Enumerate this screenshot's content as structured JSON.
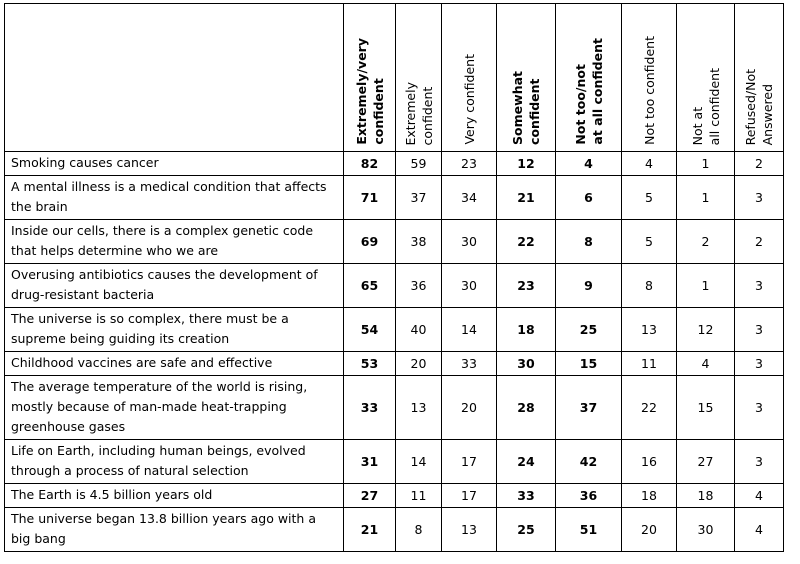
{
  "chart_data": {
    "type": "table",
    "columns": [
      {
        "label": "Extremely/very\nconfident",
        "bold": true
      },
      {
        "label": "Extremely\nconfident",
        "bold": false
      },
      {
        "label": "Very confident",
        "bold": false
      },
      {
        "label": "Somewhat\nconfident",
        "bold": true
      },
      {
        "label": "Not too/not\nat all confident",
        "bold": true
      },
      {
        "label": "Not too confident",
        "bold": false
      },
      {
        "label": "Not at\nall confident",
        "bold": false
      },
      {
        "label": "Refused/Not\nAnswered",
        "bold": false
      }
    ],
    "rows": [
      {
        "label": "Smoking causes cancer",
        "values": [
          82,
          59,
          23,
          12,
          4,
          4,
          1,
          2
        ]
      },
      {
        "label": "A mental illness is a medical condition that affects the brain",
        "values": [
          71,
          37,
          34,
          21,
          6,
          5,
          1,
          3
        ]
      },
      {
        "label": "Inside our cells, there is a complex genetic code that helps determine who we are",
        "values": [
          69,
          38,
          30,
          22,
          8,
          5,
          2,
          2
        ]
      },
      {
        "label": "Overusing antibiotics causes the development of drug-resistant bacteria",
        "values": [
          65,
          36,
          30,
          23,
          9,
          8,
          1,
          3
        ]
      },
      {
        "label": "The universe is so complex, there must be a supreme being guiding its creation",
        "values": [
          54,
          40,
          14,
          18,
          25,
          13,
          12,
          3
        ]
      },
      {
        "label": "Childhood vaccines are safe and effective",
        "values": [
          53,
          20,
          33,
          30,
          15,
          11,
          4,
          3
        ]
      },
      {
        "label": "The average temperature of the world is rising, mostly because of man-made heat-trapping greenhouse gases",
        "values": [
          33,
          13,
          20,
          28,
          37,
          22,
          15,
          3
        ]
      },
      {
        "label": "Life on Earth, including human beings, evolved through a process of natural selection",
        "values": [
          31,
          14,
          17,
          24,
          42,
          16,
          27,
          3
        ]
      },
      {
        "label": "The Earth is 4.5 billion years old",
        "values": [
          27,
          11,
          17,
          33,
          36,
          18,
          18,
          4
        ]
      },
      {
        "label": "The universe began 13.8 billion years ago with a big bang",
        "values": [
          21,
          8,
          13,
          25,
          51,
          20,
          30,
          4
        ]
      }
    ]
  }
}
